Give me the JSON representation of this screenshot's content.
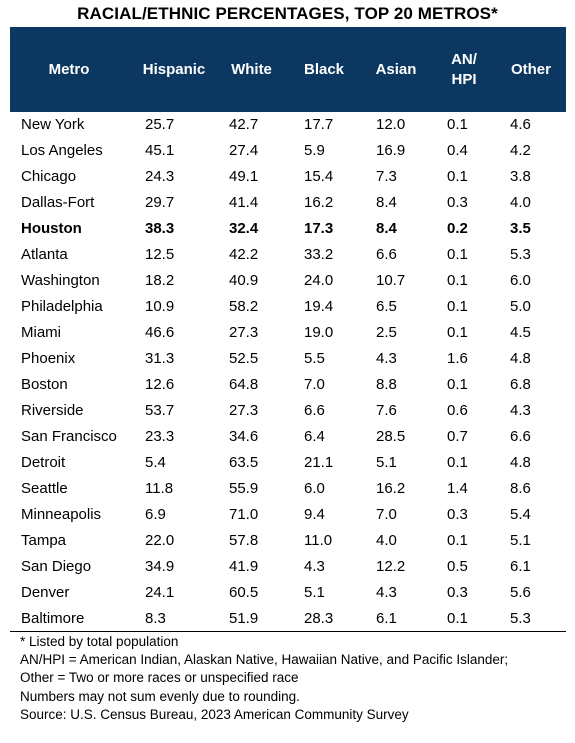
{
  "title": "RACIAL/ETHNIC PERCENTAGES, TOP 20 METROS*",
  "colors": {
    "header_bg": "#0b3760",
    "header_text": "#ffffff"
  },
  "chart_data": {
    "type": "table",
    "columns": [
      "Metro",
      "Hispanic",
      "White",
      "Black",
      "Asian",
      "AN/ HPI",
      "Other"
    ],
    "rows": [
      {
        "metro": "New York",
        "values": [
          "25.7",
          "42.7",
          "17.7",
          "12.0",
          "0.1",
          "4.6"
        ]
      },
      {
        "metro": "Los Angeles",
        "values": [
          "45.1",
          "27.4",
          "5.9",
          "16.9",
          "0.4",
          "4.2"
        ]
      },
      {
        "metro": "Chicago",
        "values": [
          "24.3",
          "49.1",
          "15.4",
          "7.3",
          "0.1",
          "3.8"
        ]
      },
      {
        "metro": "Dallas-Fort",
        "values": [
          "29.7",
          "41.4",
          "16.2",
          "8.4",
          "0.3",
          "4.0"
        ]
      },
      {
        "metro": "Houston",
        "bold": true,
        "values": [
          "38.3",
          "32.4",
          "17.3",
          "8.4",
          "0.2",
          "3.5"
        ]
      },
      {
        "metro": "Atlanta",
        "values": [
          "12.5",
          "42.2",
          "33.2",
          "6.6",
          "0.1",
          "5.3"
        ]
      },
      {
        "metro": "Washington",
        "values": [
          "18.2",
          "40.9",
          "24.0",
          "10.7",
          "0.1",
          "6.0"
        ]
      },
      {
        "metro": "Philadelphia",
        "values": [
          "10.9",
          "58.2",
          "19.4",
          "6.5",
          "0.1",
          "5.0"
        ]
      },
      {
        "metro": "Miami",
        "values": [
          "46.6",
          "27.3",
          "19.0",
          "2.5",
          "0.1",
          "4.5"
        ]
      },
      {
        "metro": "Phoenix",
        "values": [
          "31.3",
          "52.5",
          "5.5",
          "4.3",
          "1.6",
          "4.8"
        ]
      },
      {
        "metro": "Boston",
        "values": [
          "12.6",
          "64.8",
          "7.0",
          "8.8",
          "0.1",
          "6.8"
        ]
      },
      {
        "metro": "Riverside",
        "values": [
          "53.7",
          "27.3",
          "6.6",
          "7.6",
          "0.6",
          "4.3"
        ]
      },
      {
        "metro": "San Francisco",
        "values": [
          "23.3",
          "34.6",
          "6.4",
          "28.5",
          "0.7",
          "6.6"
        ]
      },
      {
        "metro": "Detroit",
        "values": [
          "5.4",
          "63.5",
          "21.1",
          "5.1",
          "0.1",
          "4.8"
        ]
      },
      {
        "metro": "Seattle",
        "values": [
          "11.8",
          "55.9",
          "6.0",
          "16.2",
          "1.4",
          "8.6"
        ]
      },
      {
        "metro": "Minneapolis",
        "values": [
          "6.9",
          "71.0",
          "9.4",
          "7.0",
          "0.3",
          "5.4"
        ]
      },
      {
        "metro": "Tampa",
        "values": [
          "22.0",
          "57.8",
          "11.0",
          "4.0",
          "0.1",
          "5.1"
        ]
      },
      {
        "metro": "San Diego",
        "values": [
          "34.9",
          "41.9",
          "4.3",
          "12.2",
          "0.5",
          "6.1"
        ]
      },
      {
        "metro": "Denver",
        "values": [
          "24.1",
          "60.5",
          "5.1",
          "4.3",
          "0.3",
          "5.6"
        ]
      },
      {
        "metro": "Baltimore",
        "values": [
          "8.3",
          "51.9",
          "28.3",
          "6.1",
          "0.1",
          "5.3"
        ]
      }
    ]
  },
  "notes": [
    "* Listed by total population",
    "AN/HPI = American Indian, Alaskan Native, Hawaiian Native, and Pacific Islander;",
    "Other = Two or more races or unspecified race",
    "Numbers may not sum evenly due to rounding.",
    "Source: U.S. Census Bureau, 2023 American Community Survey"
  ]
}
